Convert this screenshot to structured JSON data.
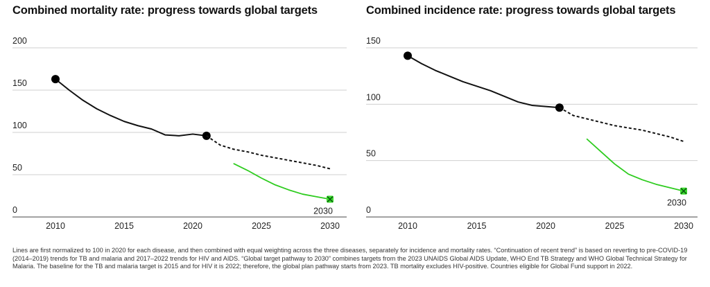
{
  "footnote": "Lines are first normalized to 100 in 2020 for each disease, and then combined with equal weighting across the three diseases, separately for incidence and mortality rates. “Continuation of recent trend” is based on reverting to pre-COVID-19 (2014–2019) trends for TB and malaria and 2017–2022 trends for HIV and AIDS. “Global target pathway to 2030” combines targets from the 2023 UNAIDS Global AIDS Update, WHO End TB Strategy and WHO Global Technical Strategy for Malaria. The baseline for the TB and malaria target is 2015 and for HIV it is 2022; therefore, the global plan pathway starts from 2023. TB mortality excludes HIV-positive. Countries eligible for Global Fund support in 2022.",
  "colors": {
    "historical": "#111111",
    "trend": "#111111",
    "target": "#2ecc1f",
    "marker_target": "#3ddc2e"
  },
  "chart_data": [
    {
      "type": "line",
      "title": "Combined mortality rate: progress towards global targets",
      "xlim": [
        2007,
        2031
      ],
      "ylim": [
        0,
        200
      ],
      "xticks": [
        2010,
        2015,
        2020,
        2025,
        2030
      ],
      "yticks": [
        0,
        50,
        100,
        150,
        200
      ],
      "grid": "horizontal",
      "end_label": "2030",
      "series": [
        {
          "style": "solid",
          "color": "#111111",
          "x": [
            2010,
            2011,
            2012,
            2013,
            2014,
            2015,
            2016,
            2017,
            2018,
            2019,
            2020,
            2021
          ],
          "y": [
            163,
            150,
            138,
            128,
            120,
            113,
            108,
            104,
            97,
            96,
            98,
            96
          ],
          "markers": [
            2010,
            2021
          ]
        },
        {
          "style": "dashed",
          "color": "#111111",
          "x": [
            2021,
            2022,
            2023,
            2024,
            2025,
            2026,
            2027,
            2028,
            2029,
            2030
          ],
          "y": [
            96,
            85,
            80,
            77,
            73,
            70,
            67,
            64,
            61,
            57
          ]
        },
        {
          "style": "solid",
          "color": "#2ecc1f",
          "x": [
            2023,
            2024,
            2025,
            2026,
            2027,
            2028,
            2029,
            2030
          ],
          "y": [
            63,
            55,
            46,
            38,
            32,
            27,
            24,
            21
          ],
          "end_marker": "x"
        }
      ]
    },
    {
      "type": "line",
      "title": "Combined incidence rate: progress towards global targets",
      "xlim": [
        2007,
        2031
      ],
      "ylim": [
        0,
        150
      ],
      "xticks": [
        2010,
        2015,
        2020,
        2025,
        2030
      ],
      "yticks": [
        0,
        50,
        100,
        150
      ],
      "grid": "horizontal",
      "end_label": "2030",
      "series": [
        {
          "style": "solid",
          "color": "#111111",
          "x": [
            2010,
            2011,
            2012,
            2013,
            2014,
            2015,
            2016,
            2017,
            2018,
            2019,
            2020,
            2021
          ],
          "y": [
            143,
            136,
            130,
            125,
            120,
            116,
            112,
            107,
            102,
            99,
            98,
            97
          ],
          "markers": [
            2010,
            2021
          ]
        },
        {
          "style": "dashed",
          "color": "#111111",
          "x": [
            2021,
            2022,
            2023,
            2024,
            2025,
            2026,
            2027,
            2028,
            2029,
            2030
          ],
          "y": [
            97,
            90,
            87,
            84,
            81,
            79,
            77,
            74,
            71,
            67
          ]
        },
        {
          "style": "solid",
          "color": "#2ecc1f",
          "x": [
            2023,
            2024,
            2025,
            2026,
            2027,
            2028,
            2029,
            2030
          ],
          "y": [
            69,
            58,
            47,
            38,
            33,
            29,
            26,
            23
          ],
          "end_marker": "x"
        }
      ]
    }
  ]
}
